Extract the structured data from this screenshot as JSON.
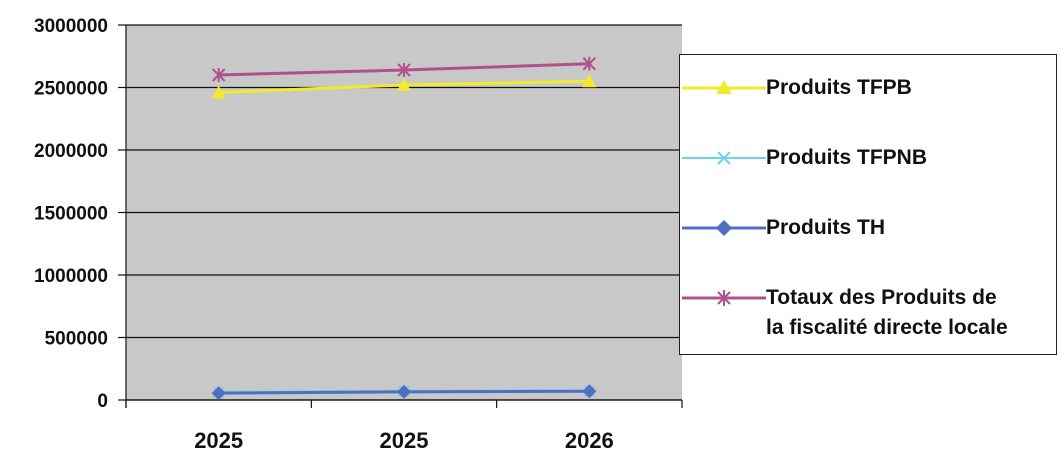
{
  "chart_data": {
    "type": "line",
    "categories": [
      "2025",
      "2025",
      "2026"
    ],
    "ylim": [
      0,
      3000000
    ],
    "yticks": [
      "0",
      "500000",
      "1000000",
      "1500000",
      "2000000",
      "2500000",
      "3000000"
    ],
    "grid": true,
    "legend_position": "right",
    "series": [
      {
        "name": "Produits TFPB",
        "values": [
          2460000,
          2520000,
          2550000
        ],
        "color": "#f2ea2b",
        "marker": "triangle"
      },
      {
        "name": "Produits TFPNB",
        "values": [
          60000,
          70000,
          72000
        ],
        "color": "#6ad4e8",
        "marker": "x"
      },
      {
        "name": "Produits TH",
        "values": [
          55000,
          65000,
          70000
        ],
        "color": "#4f6fc4",
        "marker": "diamond"
      },
      {
        "name": "Totaux des Produits de la fiscalité directe locale",
        "values": [
          2600000,
          2640000,
          2690000
        ],
        "color": "#b0508c",
        "marker": "star"
      }
    ]
  },
  "legend": {
    "items": [
      {
        "label": "Produits TFPB"
      },
      {
        "label": "Produits TFPNB"
      },
      {
        "label": "Produits TH"
      },
      {
        "label_line1": "Totaux des Produits de",
        "label_line2": "la fiscalité directe locale"
      }
    ]
  }
}
